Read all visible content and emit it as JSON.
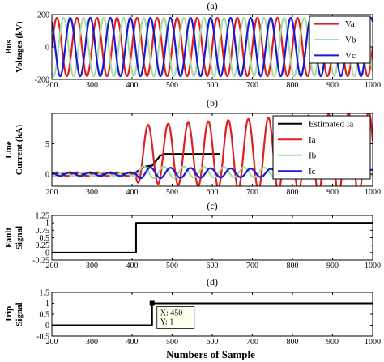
{
  "figure": {
    "xlabel": "Numbers of Sample"
  },
  "chart_data": [
    {
      "type": "line",
      "title": "(a)",
      "ylabel_lines": [
        "Bus",
        "Voltages (kV)"
      ],
      "xlim": [
        200,
        1000
      ],
      "ylim": [
        -200,
        200
      ],
      "xticks": [
        200,
        300,
        400,
        500,
        600,
        700,
        800,
        900,
        1000
      ],
      "yticks": [
        -200,
        0,
        200
      ],
      "legend": {
        "placement": "top-right",
        "entries": [
          "Va",
          "Vb",
          "Vc"
        ]
      },
      "series": [
        {
          "name": "Va",
          "color": "#e02020",
          "kind": "sine",
          "amplitude": 180,
          "period": 50,
          "phase_deg": 0,
          "x_range": [
            200,
            1000
          ]
        },
        {
          "name": "Vb",
          "color": "#a8dba8",
          "kind": "sine",
          "amplitude": 180,
          "period": 50,
          "phase_deg": -120,
          "x_range": [
            200,
            1000
          ]
        },
        {
          "name": "Vc",
          "color": "#1a1ad0",
          "kind": "sine",
          "amplitude": 180,
          "period": 50,
          "phase_deg": 120,
          "x_range": [
            200,
            1000
          ]
        }
      ]
    },
    {
      "type": "line",
      "title": "(b)",
      "ylabel_lines": [
        "Line",
        "Current (kA)"
      ],
      "xlim": [
        200,
        1000
      ],
      "ylim": [
        -2,
        10
      ],
      "xticks": [
        200,
        300,
        400,
        500,
        600,
        700,
        800,
        900,
        1000
      ],
      "yticks": [
        0,
        5
      ],
      "legend": {
        "placement": "top-right",
        "entries": [
          "Estimated Ia",
          "Ia",
          "Ib",
          "Ic"
        ]
      },
      "series": [
        {
          "name": "Estimated Ia",
          "color": "#000000",
          "kind": "polyline",
          "points": [
            [
              200,
              0.15
            ],
            [
              400,
              0.15
            ],
            [
              410,
              0.3
            ],
            [
              420,
              0.7
            ],
            [
              430,
              1.2
            ],
            [
              440,
              1.3
            ],
            [
              450,
              1.4
            ],
            [
              460,
              2.2
            ],
            [
              470,
              3.0
            ],
            [
              480,
              3.3
            ],
            [
              620,
              3.3
            ]
          ]
        },
        {
          "name": "Ia",
          "color": "#e02020",
          "kind": "fault_wave",
          "pre_amp": 0.3,
          "fault_start": 410,
          "offset": 3.3,
          "amp_start": 4.7,
          "amp_end": 7.0,
          "offset_decay": 0.0,
          "period": 50,
          "peak_at": 440,
          "x_range": [
            200,
            1000
          ]
        },
        {
          "name": "Ib",
          "color": "#a8dba8",
          "kind": "decaying_wave",
          "pre_amp": 0.3,
          "fault_start": 410,
          "offset_start": 0.3,
          "offset_end": 0.3,
          "amp_start": 1.0,
          "amp_end": 0.6,
          "period": 50,
          "phase_deg": -120,
          "x_range": [
            200,
            1000
          ]
        },
        {
          "name": "Ic",
          "color": "#1a1ad0",
          "kind": "decaying_wave",
          "pre_amp": 0.3,
          "fault_start": 410,
          "offset_start": 0.2,
          "offset_end": 0.2,
          "amp_start": 0.9,
          "amp_end": 0.5,
          "period": 50,
          "phase_deg": 120,
          "x_range": [
            200,
            1000
          ]
        }
      ]
    },
    {
      "type": "line",
      "title": "(c)",
      "ylabel_lines": [
        "Fault",
        "Signal"
      ],
      "xlim": [
        200,
        1000
      ],
      "ylim": [
        -0.25,
        1.25
      ],
      "xticks": [
        200,
        300,
        400,
        500,
        600,
        700,
        800,
        900,
        1000
      ],
      "yticks": [
        -0.25,
        0,
        0.25,
        0.5,
        0.75,
        1,
        1.25
      ],
      "ytick_labels": [
        "-0.25",
        "0",
        "0.25",
        "0.5",
        "0.75",
        "1",
        "1.25"
      ],
      "series": [
        {
          "name": "",
          "color": "#000000",
          "kind": "step",
          "points": [
            [
              200,
              0
            ],
            [
              410,
              0
            ],
            [
              410,
              1
            ],
            [
              1000,
              1
            ]
          ]
        }
      ]
    },
    {
      "type": "line",
      "title": "(d)",
      "ylabel_lines": [
        "Trip",
        "Signal"
      ],
      "xlim": [
        200,
        1000
      ],
      "ylim": [
        -0.5,
        1.5
      ],
      "xticks": [
        200,
        300,
        400,
        500,
        600,
        700,
        800,
        900,
        1000
      ],
      "yticks": [
        -0.5,
        0,
        0.5,
        1,
        1.5
      ],
      "ytick_labels": [
        "-0.5",
        "0",
        "0.5",
        "1",
        "1.5"
      ],
      "datatip": {
        "x": 450,
        "y": 1,
        "lines": [
          "X: 450",
          "Y: 1"
        ]
      },
      "series": [
        {
          "name": "",
          "color": "#000000",
          "kind": "step",
          "points": [
            [
              200,
              0
            ],
            [
              450,
              0
            ],
            [
              450,
              1
            ],
            [
              1000,
              1
            ]
          ]
        }
      ]
    }
  ]
}
